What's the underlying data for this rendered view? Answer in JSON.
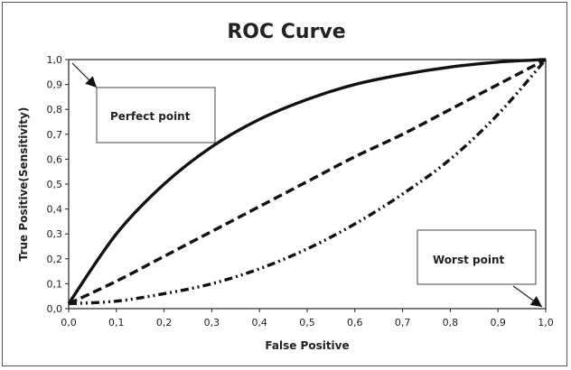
{
  "chart_data": {
    "type": "line",
    "title": "ROC Curve",
    "xlabel": "False Positive",
    "ylabel": "True Positive(Sensitivity)",
    "xlim": [
      0,
      1
    ],
    "ylim": [
      0,
      1
    ],
    "grid": false,
    "x_ticks": [
      "0,0",
      "0,1",
      "0,2",
      "0,3",
      "0,4",
      "0,5",
      "0,6",
      "0,7",
      "0,8",
      "0,9",
      "1,0"
    ],
    "y_ticks": [
      "0,0",
      "0,1",
      "0,2",
      "0,3",
      "0,4",
      "0,5",
      "0,6",
      "0,7",
      "0,8",
      "0,9",
      "1,0"
    ],
    "x": [
      0,
      0.1,
      0.2,
      0.3,
      0.4,
      0.5,
      0.6,
      0.7,
      0.8,
      0.9,
      1.0
    ],
    "series": [
      {
        "style": "solid",
        "values": [
          0.02,
          0.3,
          0.5,
          0.65,
          0.76,
          0.84,
          0.9,
          0.94,
          0.97,
          0.99,
          1.0
        ]
      },
      {
        "style": "dashed",
        "values": [
          0.02,
          0.11,
          0.21,
          0.31,
          0.41,
          0.51,
          0.61,
          0.7,
          0.8,
          0.9,
          1.0
        ]
      },
      {
        "style": "dash-dot",
        "values": [
          0.02,
          0.03,
          0.06,
          0.1,
          0.16,
          0.24,
          0.34,
          0.46,
          0.6,
          0.78,
          1.0
        ]
      }
    ],
    "annotations": [
      {
        "text": "Perfect point",
        "x": 0.0,
        "y": 1.0
      },
      {
        "text": "Worst point",
        "x": 1.0,
        "y": 0.0
      }
    ]
  }
}
